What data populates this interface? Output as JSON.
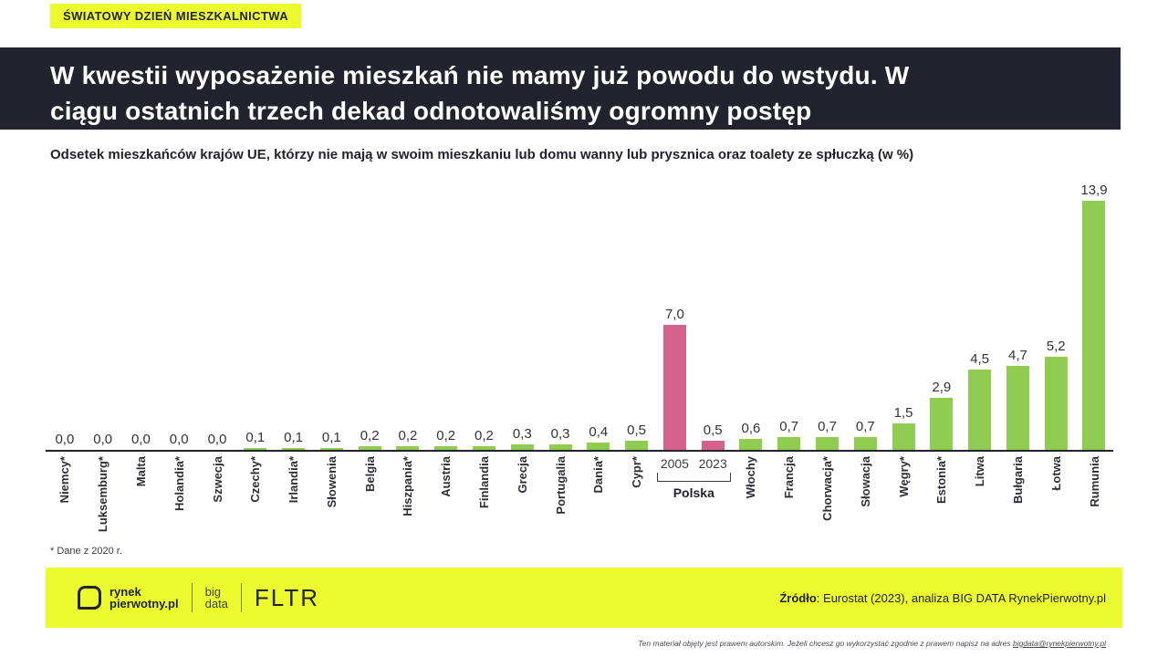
{
  "badge": {
    "text": "ŚWIATOWY DZIEŃ MIESZKALNICTWA"
  },
  "header": {
    "title": "W kwestii wyposażenie mieszkań nie mamy już powodu do wstydu. W\nciągu ostatnich trzech dekad odnotowaliśmy ogromny postęp"
  },
  "colors": {
    "brand_yellow": "#ecfb2d",
    "header_dark": "#23232f",
    "bar_green": "#8fcc52",
    "bar_pink": "#d6608c"
  },
  "chart_data": {
    "type": "bar",
    "title": "Odsetek mieszkańców krajów UE, którzy nie mają w swoim mieszkaniu lub domu wanny lub prysznica oraz toalety ze spłuczką (w %)",
    "ylabel": "",
    "xlabel": "",
    "unit": "%",
    "ylim": [
      0,
      14
    ],
    "grid": false,
    "legend": "none",
    "value_label_decimal": "comma",
    "colors": {
      "default": "#8fcc52",
      "highlight": "#d6608c"
    },
    "footnote": "* Dane z 2020 r.",
    "group_label": "Polska",
    "columns": [
      {
        "label": "Niemcy*",
        "value": 0.0,
        "display": "0,0"
      },
      {
        "label": "Luksemburg*",
        "value": 0.0,
        "display": "0,0"
      },
      {
        "label": "Malta",
        "value": 0.0,
        "display": "0,0"
      },
      {
        "label": "Holandia*",
        "value": 0.0,
        "display": "0,0"
      },
      {
        "label": "Szwecja",
        "value": 0.0,
        "display": "0,0"
      },
      {
        "label": "Czechy*",
        "value": 0.1,
        "display": "0,1"
      },
      {
        "label": "Irlandia*",
        "value": 0.1,
        "display": "0,1"
      },
      {
        "label": "Słowenia",
        "value": 0.1,
        "display": "0,1"
      },
      {
        "label": "Belgia",
        "value": 0.2,
        "display": "0,2"
      },
      {
        "label": "Hiszpania*",
        "value": 0.2,
        "display": "0,2"
      },
      {
        "label": "Austria",
        "value": 0.2,
        "display": "0,2"
      },
      {
        "label": "Finlandia",
        "value": 0.2,
        "display": "0,2"
      },
      {
        "label": "Grecja",
        "value": 0.3,
        "display": "0,3"
      },
      {
        "label": "Portugalia",
        "value": 0.3,
        "display": "0,3"
      },
      {
        "label": "Dania*",
        "value": 0.4,
        "display": "0,4"
      },
      {
        "label": "Cypr*",
        "value": 0.5,
        "display": "0,5"
      },
      {
        "label": "2005",
        "group": "Polska",
        "value": 7.0,
        "display": "7,0",
        "highlight": true
      },
      {
        "label": "2023",
        "group": "Polska",
        "value": 0.5,
        "display": "0,5",
        "highlight": true
      },
      {
        "label": "Włochy",
        "value": 0.6,
        "display": "0,6"
      },
      {
        "label": "Francja",
        "value": 0.7,
        "display": "0,7"
      },
      {
        "label": "Chorwacja*",
        "value": 0.7,
        "display": "0,7"
      },
      {
        "label": "Słowacja",
        "value": 0.7,
        "display": "0,7"
      },
      {
        "label": "Węgry*",
        "value": 1.5,
        "display": "1,5"
      },
      {
        "label": "Estonia*",
        "value": 2.9,
        "display": "2,9"
      },
      {
        "label": "Litwa",
        "value": 4.5,
        "display": "4,5"
      },
      {
        "label": "Bułgaria",
        "value": 4.7,
        "display": "4,7"
      },
      {
        "label": "Łotwa",
        "value": 5.2,
        "display": "5,2"
      },
      {
        "label": "Rumunia",
        "value": 13.9,
        "display": "13,9"
      }
    ]
  },
  "footer": {
    "logo": {
      "brand_line1": "rynek",
      "brand_line2": "pierwotny.pl",
      "bigdata_line1": "big",
      "bigdata_line2": "data",
      "fltr": "FLTR"
    },
    "source_label": "Źródło",
    "source_text": ": Eurostat (2023), analiza BIG DATA RynekPierwotny.pl"
  },
  "fineprint": {
    "text": "Ten materiał objęty jest prawem autorskim. Jeżeli chcesz go wykorzystać zgodnie z prawem napisz na adres ",
    "email": "bigdata@rynekpierwotny.pl"
  }
}
